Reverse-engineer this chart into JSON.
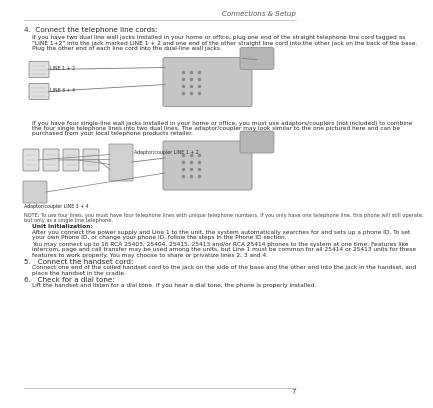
{
  "page_number": "7",
  "header_text": "Connections & Setup",
  "section_title": "4.  Connect the telephone line cords:",
  "para1_lines": [
    "If you have two dual line wall jacks installed in your home or office, plug one end of the straight telephone line cord tagged as",
    "\"LINE 1+2\" into the jack marked LINE 1 + 2 and one end of the other straight line cord into the other jack on the back of the base.",
    "Plug the other end of each line cord into the dual-line wall jacks."
  ],
  "diagram1_label1": "LINE 1 + 2",
  "diagram1_label2": "LINE 3 + 4",
  "para2_lines": [
    "If you have four single-line wall jacks installed in your home or office, you must use adaptors/couplers (not included) to combine",
    "the four single telephone lines into two dual lines. The adaptor/coupler may look similar to the one pictured here and can be",
    "purchased from your local telephone products retailer."
  ],
  "diagram2_label1": "Adaptor/coupler LINE 1 + 2",
  "diagram2_label2": "Adaptor/coupler LINE 3 + 4",
  "note_lines": [
    "NOTE: To use four lines, you must have four telephone lines with unique telephone numbers. If you only have one telephone line, this phone will still operate,",
    "but only as a single line telephone."
  ],
  "unit_init_title": "Unit Initialization:",
  "unit_init_para1_lines": [
    "After you connect the power supply and Line 1 to the unit, the system automatically searches for and sets up a phone ID. To set",
    "your own Phone ID, or change your phone ID, follow the steps in the Phone ID section."
  ],
  "unit_init_para2_lines": [
    "You may connect up to 16 RCA 25403, 25404, 25415, 25413 and/or RCA 25414 phones to the system at one time. Features like",
    "intercom, page and call transfer may be used among the units, but Line 1 must be common for all 25414 or 25413 units for these",
    "features to work properly. You may choose to share or privatize lines 2, 3 and 4."
  ],
  "step5_title": "5.   Connect the handset cord:",
  "step5_para_lines": [
    "Connect one end of the coiled handset cord to the jack on the side of the base and the other end into the jack in the handset, and",
    "place the handset in the cradle."
  ],
  "step6_title": "6.   Check for a dial tone:",
  "step6_para": "Lift the handset and listen for a dial tone. If you hear a dial tone, the phone is properly installed.",
  "bg_color": "#ffffff",
  "text_color": "#2a2a2a",
  "header_color": "#555555",
  "note_color": "#444444",
  "line_color": "#b0b0b0",
  "diagram_line_color": "#777777",
  "diagram_fill": "#d8d8d8",
  "diagram_dark": "#888888"
}
